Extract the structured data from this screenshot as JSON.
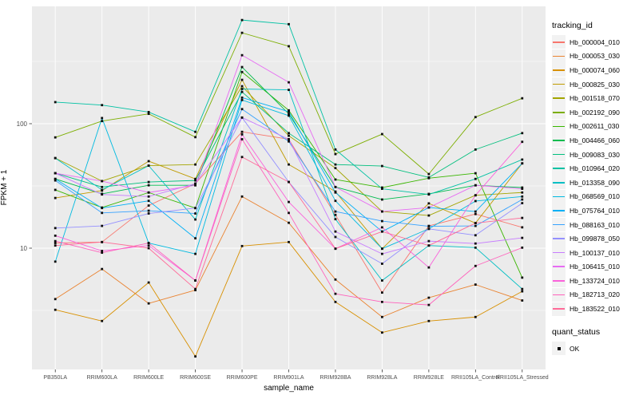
{
  "chart_data": {
    "type": "line",
    "title": "",
    "xlabel": "sample_name",
    "ylabel": "FPKM + 1",
    "y_scale": "log10",
    "grid": true,
    "panel_color": "#EBEBEB",
    "grid_color": "#FFFFFF",
    "axis_text_color": "#4D4D4D",
    "point_color": "#0D0D0D",
    "point_shape": "filled-square",
    "y_ticks": [
      {
        "label": "10",
        "value": 10
      },
      {
        "label": "100",
        "value": 100
      }
    ],
    "y_minor": [
      3.162,
      31.62,
      316.2
    ],
    "ylim": [
      1.05,
      880
    ],
    "categories": [
      "PB350LA",
      "RRIM600LA",
      "RRIM600LE",
      "RRIM600SE",
      "RRIM600PE",
      "RRIM901LA",
      "RRIM928BA",
      "RRIM928LA",
      "RRIM928LE",
      "RRII105LA_Control",
      "RRII105LA_Stressed"
    ],
    "legend": {
      "title": "tracking_id",
      "position": "right"
    },
    "legend2": {
      "title": "quant_status",
      "items": [
        {
          "label": "OK",
          "marker": "filled-square",
          "color": "#000000"
        }
      ]
    },
    "series": [
      {
        "name": "Hb_000004_010",
        "color": "#F8766D",
        "values": [
          11,
          11.2,
          22,
          33,
          86,
          75,
          18.5,
          4.4,
          15.1,
          18.8,
          14.7
        ]
      },
      {
        "name": "Hb_000053_030",
        "color": "#EA8331",
        "values": [
          3.9,
          6.8,
          3.6,
          4.6,
          26,
          16,
          5.6,
          2.8,
          4.0,
          5.1,
          3.8
        ]
      },
      {
        "name": "Hb_000074_060",
        "color": "#D89000",
        "values": [
          3.2,
          2.6,
          5.3,
          1.35,
          10.4,
          11.2,
          3.7,
          2.1,
          2.6,
          2.8,
          4.5
        ]
      },
      {
        "name": "Hb_000825_030",
        "color": "#C09B00",
        "values": [
          25.3,
          29,
          50,
          36,
          225,
          47,
          28.5,
          9.9,
          22.9,
          15.9,
          48
        ]
      },
      {
        "name": "Hb_001518_070",
        "color": "#A3A500",
        "values": [
          52.9,
          34.6,
          46,
          47,
          200,
          80,
          44,
          19.7,
          18.3,
          26.6,
          28
        ]
      },
      {
        "name": "Hb_002192_090",
        "color": "#7CAE00",
        "values": [
          77.6,
          105,
          120,
          78,
          537,
          419,
          57,
          82.5,
          39.4,
          113,
          160
        ]
      },
      {
        "name": "Hb_002611_030",
        "color": "#39B600",
        "values": [
          29.4,
          21.2,
          28,
          21,
          260,
          128,
          35.6,
          30.7,
          36.5,
          40,
          5.8
        ]
      },
      {
        "name": "Hb_004466_060",
        "color": "#00BB4E",
        "values": [
          36,
          27.3,
          32,
          32,
          285,
          120,
          31,
          24.6,
          27.3,
          32,
          30.7
        ]
      },
      {
        "name": "Hb_009083_030",
        "color": "#00BF7D",
        "values": [
          40,
          31,
          34,
          35,
          180,
          84,
          47,
          45.7,
          37,
          62,
          84
        ]
      },
      {
        "name": "Hb_010964_020",
        "color": "#00C1A3",
        "values": [
          149,
          141,
          124,
          86,
          680,
          630,
          62,
          30,
          27,
          36,
          51.5
        ]
      },
      {
        "name": "Hb_013358_090",
        "color": "#00BFC4",
        "values": [
          52.9,
          29.4,
          46,
          17,
          190,
          187,
          17.1,
          5.5,
          10.5,
          10.1,
          4.7
        ]
      },
      {
        "name": "Hb_068569_010",
        "color": "#00BAE0",
        "values": [
          7.8,
          111,
          11,
          9,
          155,
          116,
          24,
          9.9,
          14.3,
          23.9,
          26
        ]
      },
      {
        "name": "Hb_075764_010",
        "color": "#00B0F6",
        "values": [
          36,
          21,
          24,
          12,
          162,
          125,
          28,
          13.6,
          21.2,
          19.7,
          48
        ]
      },
      {
        "name": "Hb_088163_010",
        "color": "#35A2FF",
        "values": [
          35,
          19.2,
          20,
          19,
          131,
          72,
          19.7,
          16.5,
          15,
          15.1,
          24.6
        ]
      },
      {
        "name": "Hb_099878_050",
        "color": "#9590FF",
        "values": [
          14.5,
          15.1,
          19,
          21,
          112,
          34,
          12.3,
          7.5,
          14.3,
          12.7,
          23
        ]
      },
      {
        "name": "Hb_100137_010",
        "color": "#C77CFF",
        "values": [
          40,
          27,
          26,
          33,
          112,
          75,
          13.6,
          9.0,
          11.4,
          10.9,
          12.1
        ]
      },
      {
        "name": "Hb_106415_010",
        "color": "#E76BF3",
        "values": [
          40,
          34.6,
          28,
          32,
          355,
          215,
          31,
          19.7,
          21.2,
          32,
          30
        ]
      },
      {
        "name": "Hb_133724_010",
        "color": "#FA62DB",
        "values": [
          12.6,
          9.5,
          10.5,
          5.5,
          82,
          23.5,
          9.9,
          14.7,
          7.0,
          26.6,
          71.5
        ]
      },
      {
        "name": "Hb_182713_020",
        "color": "#FF62BC",
        "values": [
          11.4,
          9.2,
          11,
          5.5,
          75,
          19.2,
          4.3,
          3.7,
          3.5,
          7.2,
          10.1
        ]
      },
      {
        "name": "Hb_183522_010",
        "color": "#FF6A98",
        "values": [
          10.5,
          11.2,
          10,
          4.7,
          54,
          34,
          9.9,
          13.6,
          10.5,
          15.9,
          17.5
        ]
      }
    ]
  }
}
